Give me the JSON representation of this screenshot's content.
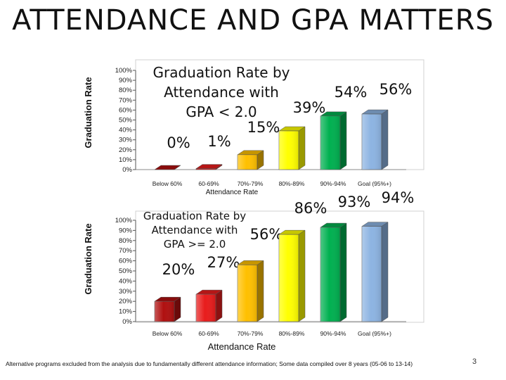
{
  "slide": {
    "title": "ATTENDANCE AND GPA MATTERS",
    "footnote": "Alternative programs excluded from the analysis due to fundamentally different attendance information; Some data compiled over 8 years (05-06 to 13-14)",
    "page_number": "3"
  },
  "chart_data": [
    {
      "type": "bar",
      "title_lines": [
        "Graduation Rate by",
        "Attendance with",
        "GPA < 2.0"
      ],
      "categories": [
        "Below 60%",
        "60-69%",
        "70%-79%",
        "80%-89%",
        "90%-94%",
        "Goal (95%+)"
      ],
      "values": [
        0,
        1,
        15,
        39,
        54,
        56
      ],
      "data_labels": [
        "0%",
        "1%",
        "15%",
        "39%",
        "54%",
        "56%"
      ],
      "xlabel": "Attendance Rate",
      "ylabel": "Graduation Rate",
      "ylim": [
        0,
        100
      ],
      "yticks": [
        "0%",
        "10%",
        "20%",
        "30%",
        "40%",
        "50%",
        "60%",
        "70%",
        "80%",
        "90%",
        "100%"
      ],
      "colors": [
        "#b01010",
        "#e81c1c",
        "#ffc000",
        "#ffff00",
        "#00b050",
        "#8db4e2"
      ]
    },
    {
      "type": "bar",
      "title_lines": [
        "Graduation Rate by",
        "Attendance with",
        "GPA >= 2.0"
      ],
      "categories": [
        "Below 60%",
        "60-69%",
        "70%-79%",
        "80%-89%",
        "90%-94%",
        "Goal (95%+)"
      ],
      "values": [
        20,
        27,
        56,
        86,
        93,
        94
      ],
      "data_labels": [
        "20%",
        "27%",
        "56%",
        "86%",
        "93%",
        "94%"
      ],
      "xlabel": "Attendance Rate",
      "ylabel": "Graduation Rate",
      "ylim": [
        0,
        100
      ],
      "yticks": [
        "0%",
        "10%",
        "20%",
        "30%",
        "40%",
        "50%",
        "60%",
        "70%",
        "80%",
        "90%",
        "100%"
      ],
      "colors": [
        "#b01010",
        "#e81c1c",
        "#ffc000",
        "#ffff00",
        "#00b050",
        "#8db4e2"
      ]
    }
  ]
}
